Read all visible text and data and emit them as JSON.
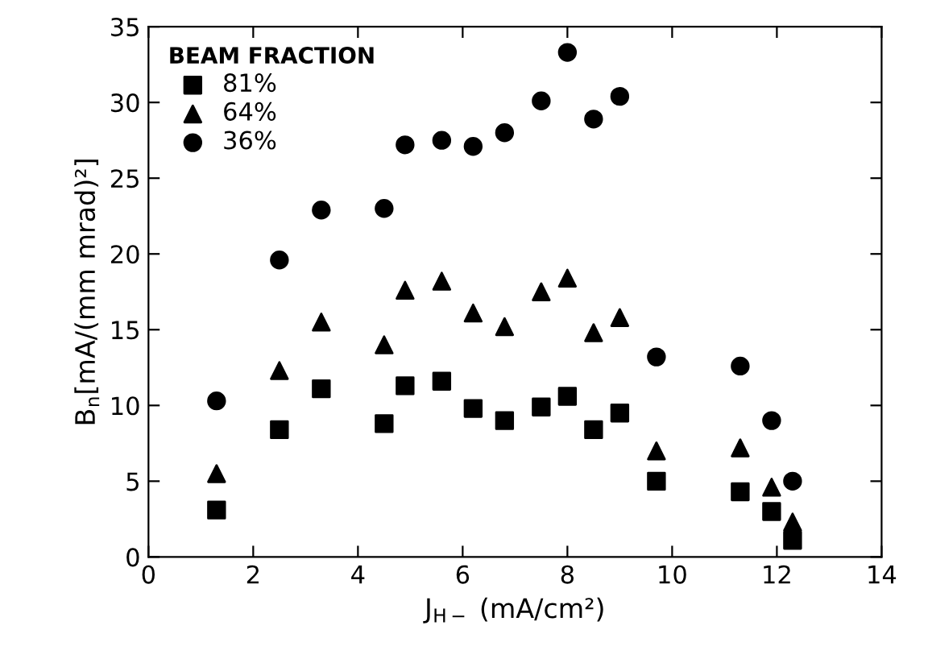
{
  "chart_data": {
    "type": "scatter",
    "xlabel": "J$_{H−}$ (mA/cm²)",
    "ylabel": "B$_{n}$[mA/(mm mrad)²]",
    "legend_title": "BEAM FRACTION",
    "x": [
      1.3,
      2.5,
      3.3,
      4.5,
      4.9,
      5.6,
      6.2,
      6.8,
      7.5,
      8.0,
      8.5,
      9.0,
      9.7,
      11.3,
      11.9,
      12.3
    ],
    "series": [
      {
        "name": "81%",
        "color": "#000000",
        "marker": "square",
        "values": [
          3.1,
          8.4,
          11.1,
          8.8,
          11.3,
          11.6,
          9.8,
          9.0,
          9.9,
          10.6,
          8.4,
          9.5,
          5.0,
          4.3,
          3.0,
          1.1
        ]
      },
      {
        "name": "64%",
        "color": "#000000",
        "marker": "triangle",
        "values": [
          5.5,
          12.3,
          15.5,
          14.0,
          17.6,
          18.2,
          16.1,
          15.2,
          17.5,
          18.4,
          14.8,
          15.8,
          7.0,
          7.2,
          4.6,
          2.3
        ]
      },
      {
        "name": "36%",
        "color": "#000000",
        "marker": "circle",
        "values": [
          10.3,
          19.6,
          22.9,
          23.0,
          27.2,
          27.5,
          27.1,
          28.0,
          30.1,
          33.3,
          28.9,
          30.4,
          13.2,
          12.6,
          9.0,
          5.0
        ]
      }
    ],
    "xlim": [
      0,
      14
    ],
    "xticks": [
      0,
      2,
      4,
      6,
      8,
      10,
      12,
      14
    ],
    "ylim": [
      0,
      35
    ],
    "yticks": [
      0,
      5,
      10,
      15,
      20,
      25,
      30,
      35
    ],
    "grid": false,
    "legend": "top left"
  }
}
